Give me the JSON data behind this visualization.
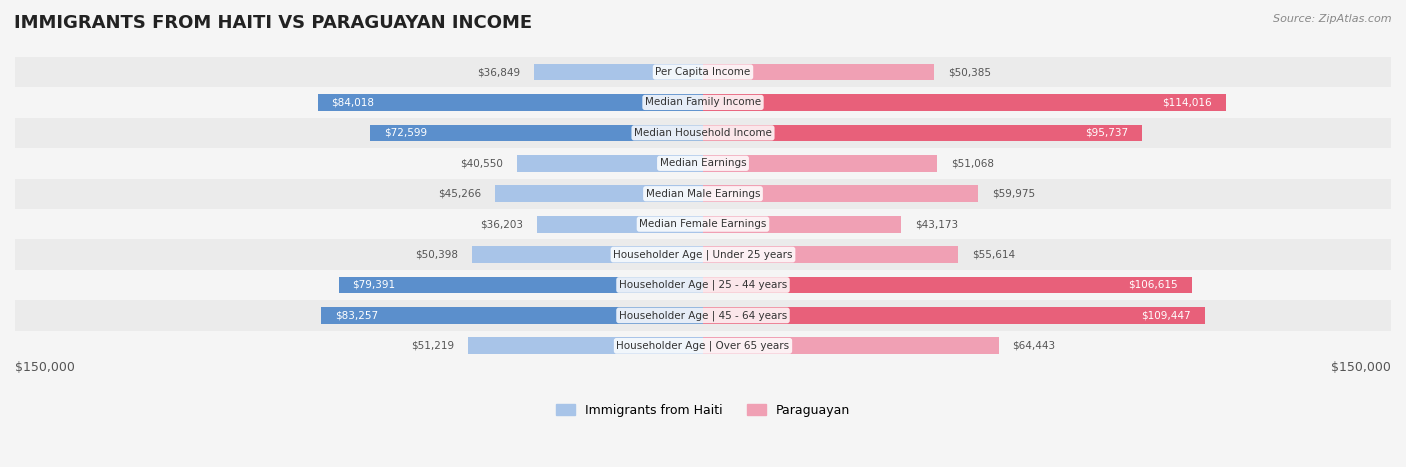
{
  "title": "IMMIGRANTS FROM HAITI VS PARAGUAYAN INCOME",
  "source": "Source: ZipAtlas.com",
  "categories": [
    "Per Capita Income",
    "Median Family Income",
    "Median Household Income",
    "Median Earnings",
    "Median Male Earnings",
    "Median Female Earnings",
    "Householder Age | Under 25 years",
    "Householder Age | 25 - 44 years",
    "Householder Age | 45 - 64 years",
    "Householder Age | Over 65 years"
  ],
  "haiti_values": [
    36849,
    84018,
    72599,
    40550,
    45266,
    36203,
    50398,
    79391,
    83257,
    51219
  ],
  "paraguay_values": [
    50385,
    114016,
    95737,
    51068,
    59975,
    43173,
    55614,
    106615,
    109447,
    64443
  ],
  "haiti_labels": [
    "$36,849",
    "$84,018",
    "$72,599",
    "$40,550",
    "$45,266",
    "$36,203",
    "$50,398",
    "$79,391",
    "$83,257",
    "$51,219"
  ],
  "paraguay_labels": [
    "$50,385",
    "$114,016",
    "$95,737",
    "$51,068",
    "$59,975",
    "$43,173",
    "$55,614",
    "$106,615",
    "$109,447",
    "$64,443"
  ],
  "haiti_color_dark": "#5b8fcc",
  "haiti_color_light": "#a8c4e8",
  "paraguay_color_dark": "#e8607a",
  "paraguay_color_light": "#f0a0b4",
  "max_value": 150000,
  "legend_haiti": "Immigrants from Haiti",
  "legend_paraguay": "Paraguayan",
  "x_label_left": "$150,000",
  "x_label_right": "$150,000",
  "bg_color": "#f5f5f5",
  "row_bg": "#ebebeb",
  "row_bg_alt": "#f5f5f5"
}
